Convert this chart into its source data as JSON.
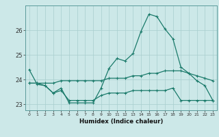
{
  "xlabel": "Humidex (Indice chaleur)",
  "bg_color": "#cce8e8",
  "line_color": "#1a7a6a",
  "grid_color": "#a8cece",
  "xlim": [
    -0.5,
    23.5
  ],
  "ylim": [
    22.75,
    27.0
  ],
  "yticks": [
    23,
    24,
    25,
    26
  ],
  "xticks": [
    0,
    1,
    2,
    3,
    4,
    5,
    6,
    7,
    8,
    9,
    10,
    11,
    12,
    13,
    14,
    15,
    16,
    17,
    18,
    19,
    20,
    21,
    22,
    23
  ],
  "series1": [
    24.4,
    23.8,
    23.75,
    23.45,
    23.65,
    23.05,
    23.05,
    23.05,
    23.05,
    23.65,
    24.45,
    24.85,
    24.75,
    25.05,
    25.95,
    26.65,
    26.55,
    26.05,
    25.65,
    24.5,
    24.25,
    23.95,
    23.75,
    23.15
  ],
  "series2": [
    23.85,
    23.85,
    23.75,
    23.45,
    23.55,
    23.15,
    23.15,
    23.15,
    23.15,
    23.35,
    23.45,
    23.45,
    23.45,
    23.55,
    23.55,
    23.55,
    23.55,
    23.55,
    23.65,
    23.15,
    23.15,
    23.15,
    23.15,
    23.15
  ],
  "series3": [
    23.85,
    23.85,
    23.85,
    23.85,
    23.95,
    23.95,
    23.95,
    23.95,
    23.95,
    23.95,
    24.05,
    24.05,
    24.05,
    24.15,
    24.15,
    24.25,
    24.25,
    24.35,
    24.35,
    24.35,
    24.25,
    24.15,
    24.05,
    23.95
  ]
}
